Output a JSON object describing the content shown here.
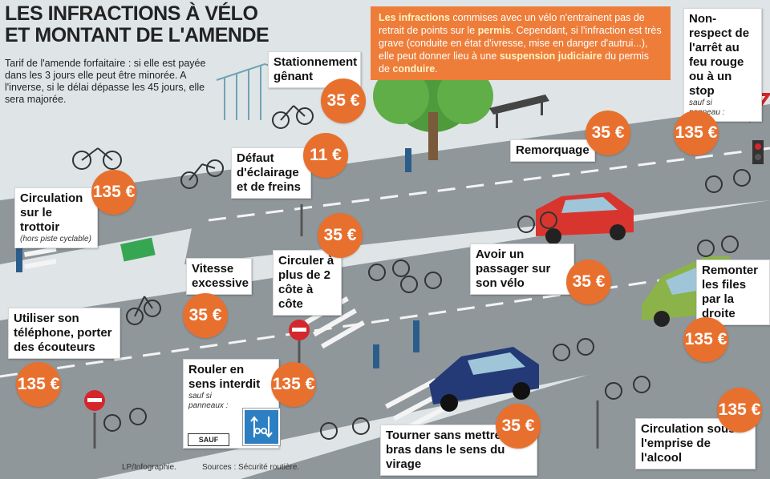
{
  "header": {
    "title_line1": "LES INFRACTIONS À VÉLO",
    "title_line2": "ET MONTANT DE L'AMENDE",
    "intro": "Tarif de l'amende forfaitaire : si elle est payée dans les 3 jours elle peut être minorée. A l'inverse, si le délai dépasse les 45 jours, elle sera majorée."
  },
  "info_box": {
    "part1_bold": "Les infractions",
    "part2": " commises avec un vélo n'entrainent pas de retrait de points sur le ",
    "part3_bold": "permis",
    "part4": ". Cependant, si l'infraction est très grave (conduite en état d'ivresse, mise en danger d'autrui...), elle peut donner lieu à une ",
    "part5_bold": "suspension judiciaire",
    "part6": " du permis de ",
    "part7_bold": "conduire",
    "part8": "."
  },
  "infractions": [
    {
      "label": "Stationnement gênant",
      "amount": "35 €"
    },
    {
      "label": "Défaut d'éclairage et de freins",
      "amount": "11 €"
    },
    {
      "label": "Circulation sur le trottoir",
      "note": "(hors piste cyclable)",
      "amount": "135 €"
    },
    {
      "label": "Vitesse excessive",
      "amount": "35 €"
    },
    {
      "label": "Circuler à plus de 2 côte à côte",
      "amount": "35 €"
    },
    {
      "label": "Remorquage",
      "amount": "35 €"
    },
    {
      "label": "Non-respect de l'arrêt au feu rouge ou à un stop",
      "note": "sauf si panneau :",
      "amount": "135 €"
    },
    {
      "label": "Avoir un passager sur son vélo",
      "amount": "35 €"
    },
    {
      "label": "Remonter les files par la droite",
      "amount": "135 €"
    },
    {
      "label": "Utiliser son téléphone, porter des écouteurs",
      "amount": "135 €"
    },
    {
      "label": "Rouler en sens interdit",
      "note": "sauf si panneaux :",
      "amount": "135 €"
    },
    {
      "label": "Tourner sans mettre le bras dans le sens du virage",
      "amount": "35 €"
    },
    {
      "label": "Circulation sous l'emprise de l'alcool",
      "amount": "135 €"
    }
  ],
  "sign_sauf": "SAUF",
  "credits": {
    "left": "LP/Infographie.",
    "right": "Sources : Sécurité routière."
  },
  "colors": {
    "orange": "#e8702e",
    "info_bg": "#ee7d3a",
    "road": "#8f979b",
    "sidewalk": "#c9d1d4",
    "grass": "#4f9a3c",
    "sign_red": "#d5262b",
    "sign_blue": "#2d7fc3"
  }
}
